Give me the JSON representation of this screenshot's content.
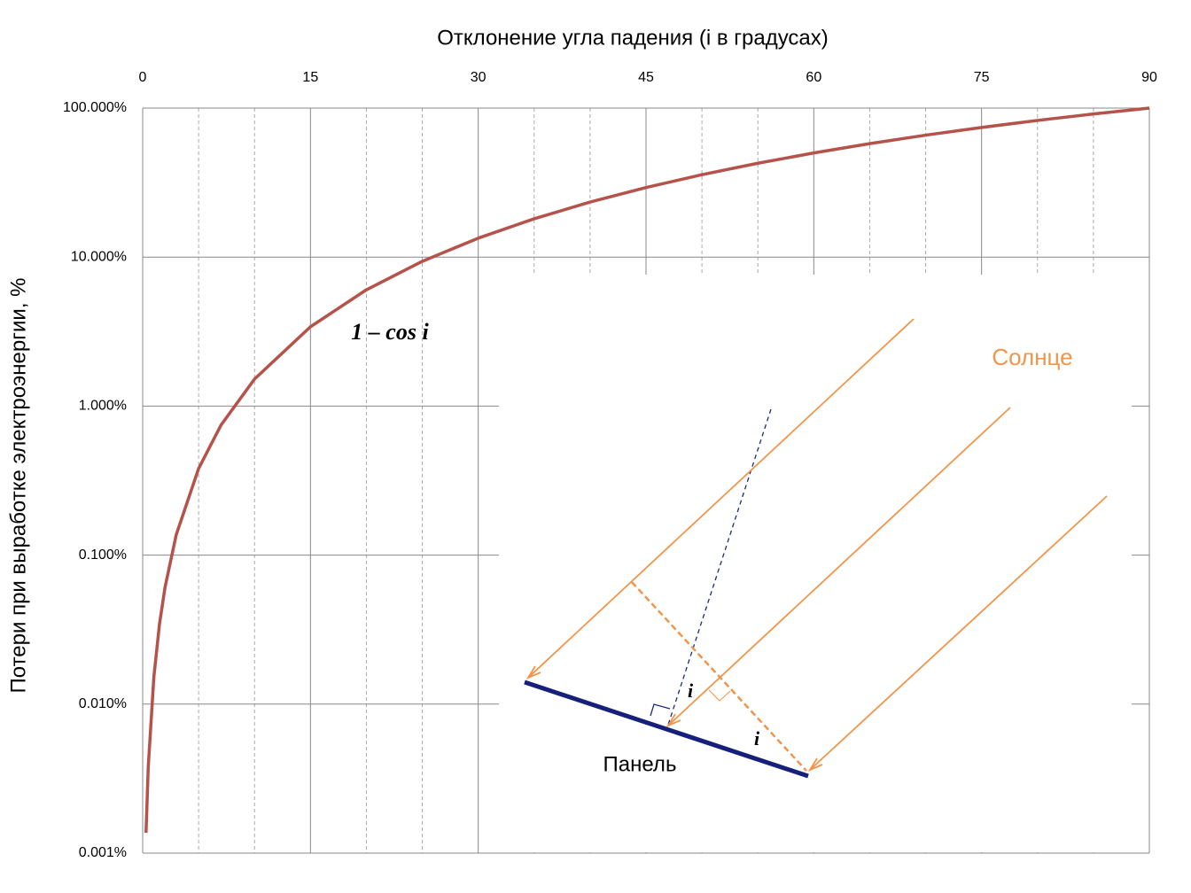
{
  "chart_data": {
    "type": "line",
    "title": "Отклонение  угла падения (i в градусах)",
    "y_label": "Потери при выработке электроэнергии, %",
    "x": [
      0.3,
      0.5,
      1,
      1.5,
      2,
      3,
      5,
      7,
      10,
      15,
      20,
      25,
      30,
      35,
      40,
      45,
      50,
      55,
      60,
      65,
      70,
      75,
      80,
      85,
      90
    ],
    "values": [
      0.00137,
      0.0038,
      0.0152,
      0.0343,
      0.0609,
      0.137,
      0.381,
      0.745,
      1.519,
      3.407,
      6.031,
      9.369,
      13.397,
      18.085,
      23.396,
      29.289,
      35.721,
      42.642,
      50,
      57.738,
      65.798,
      74.118,
      82.635,
      91.284,
      100
    ],
    "color": "#b5524a",
    "xlim": [
      0,
      90
    ],
    "xticks": [
      0,
      15,
      30,
      45,
      60,
      75,
      90
    ],
    "x_minor_ticks": [
      5,
      10,
      20,
      25,
      35,
      40,
      50,
      55,
      65,
      70,
      80,
      85
    ],
    "ylim": [
      0.001,
      100
    ],
    "y_log": true,
    "yticks": [
      {
        "value": 0.001,
        "label": "0.001%"
      },
      {
        "value": 0.01,
        "label": "0.010%"
      },
      {
        "value": 0.1,
        "label": "0.100%"
      },
      {
        "value": 1,
        "label": "1.000%"
      },
      {
        "value": 10,
        "label": "10.000%"
      },
      {
        "value": 100,
        "label": "100.000%"
      }
    ],
    "grid": true,
    "annotations": [
      "1 – cos i"
    ],
    "inset": {
      "sun_label": "Солнце",
      "panel_label": "Панель",
      "angle_labels": [
        "i",
        "i"
      ]
    }
  }
}
